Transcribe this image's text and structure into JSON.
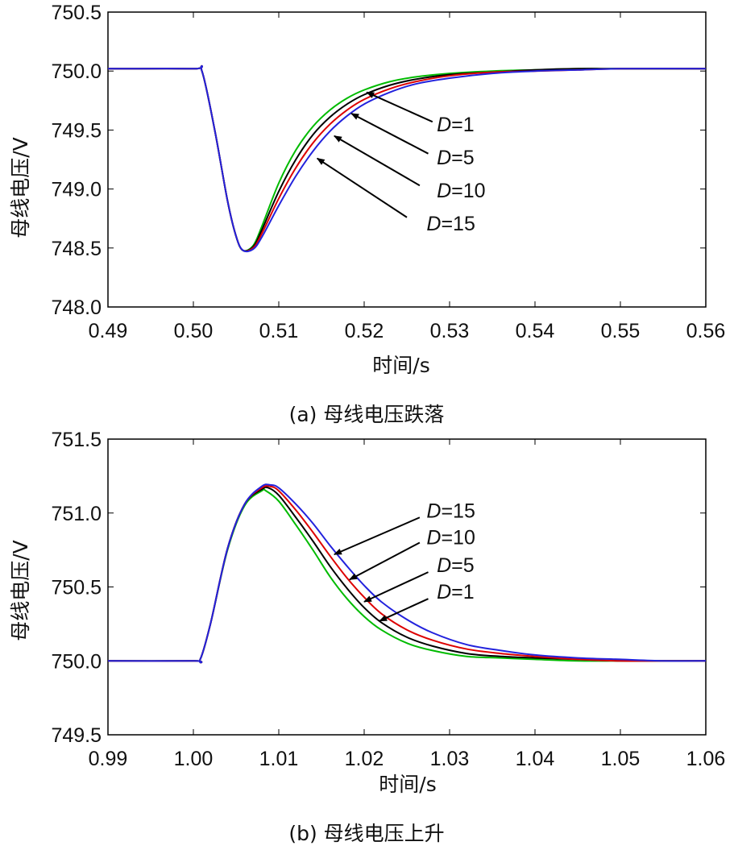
{
  "chart_data": [
    {
      "type": "line",
      "caption": "(a) 母线电压跌落",
      "xlabel": "时间/s",
      "ylabel": "母线电压/V",
      "xlim": [
        0.49,
        0.56
      ],
      "ylim": [
        748.0,
        750.5
      ],
      "xticks": [
        "0.49",
        "0.50",
        "0.51",
        "0.52",
        "0.53",
        "0.54",
        "0.55",
        "0.56"
      ],
      "yticks": [
        "748.0",
        "748.5",
        "749.0",
        "749.5",
        "750.0",
        "750.5"
      ],
      "grid": false,
      "series": [
        {
          "name": "D=1",
          "color": "#00bb00",
          "x": [
            0.49,
            0.5,
            0.501,
            0.5025,
            0.504,
            0.505,
            0.5058,
            0.507,
            0.508,
            0.51,
            0.512,
            0.514,
            0.516,
            0.518,
            0.52,
            0.523,
            0.526,
            0.53,
            0.535,
            0.54,
            0.545,
            0.55,
            0.56
          ],
          "y": [
            750.02,
            750.02,
            750.0,
            749.5,
            748.9,
            748.6,
            748.48,
            748.52,
            748.68,
            749.05,
            749.33,
            749.53,
            749.67,
            749.77,
            749.84,
            749.91,
            749.95,
            749.98,
            750.0,
            750.01,
            750.02,
            750.02,
            750.02
          ]
        },
        {
          "name": "D=5",
          "color": "#000000",
          "x": [
            0.49,
            0.5,
            0.501,
            0.5025,
            0.504,
            0.505,
            0.5058,
            0.507,
            0.508,
            0.51,
            0.512,
            0.514,
            0.516,
            0.518,
            0.52,
            0.523,
            0.526,
            0.53,
            0.535,
            0.54,
            0.545,
            0.55,
            0.56
          ],
          "y": [
            750.02,
            750.02,
            750.0,
            749.5,
            748.9,
            748.6,
            748.48,
            748.51,
            748.65,
            748.98,
            749.25,
            749.46,
            749.61,
            749.72,
            749.8,
            749.88,
            749.93,
            749.97,
            749.99,
            750.01,
            750.02,
            750.02,
            750.02
          ]
        },
        {
          "name": "D=10",
          "color": "#dd0000",
          "x": [
            0.49,
            0.5,
            0.501,
            0.5025,
            0.504,
            0.505,
            0.5058,
            0.507,
            0.508,
            0.51,
            0.512,
            0.514,
            0.516,
            0.518,
            0.52,
            0.523,
            0.526,
            0.53,
            0.535,
            0.54,
            0.545,
            0.55,
            0.56
          ],
          "y": [
            750.02,
            750.02,
            750.0,
            749.5,
            748.9,
            748.6,
            748.48,
            748.5,
            748.62,
            748.92,
            749.18,
            749.39,
            749.55,
            749.67,
            749.76,
            749.85,
            749.91,
            749.96,
            749.99,
            750.0,
            750.01,
            750.02,
            750.02
          ]
        },
        {
          "name": "D=15",
          "color": "#2222dd",
          "x": [
            0.49,
            0.5,
            0.501,
            0.5025,
            0.504,
            0.505,
            0.5058,
            0.507,
            0.508,
            0.51,
            0.512,
            0.514,
            0.516,
            0.518,
            0.52,
            0.523,
            0.526,
            0.53,
            0.535,
            0.54,
            0.545,
            0.55,
            0.56
          ],
          "y": [
            750.02,
            750.02,
            750.0,
            749.5,
            748.9,
            748.6,
            748.48,
            748.49,
            748.59,
            748.86,
            749.11,
            749.32,
            749.49,
            749.62,
            749.72,
            749.82,
            749.89,
            749.94,
            749.98,
            750.0,
            750.01,
            750.02,
            750.02
          ]
        }
      ],
      "annotations": [
        {
          "label_prefix": "D",
          "label_value": "=1",
          "series": "D=1",
          "tip": [
            0.5203,
            749.82
          ],
          "tail": [
            0.528,
            749.57
          ],
          "label_at": [
            0.5285,
            749.49
          ]
        },
        {
          "label_prefix": "D",
          "label_value": "=5",
          "series": "D=5",
          "tip": [
            0.5185,
            749.64
          ],
          "tail": [
            0.5275,
            749.3
          ],
          "label_at": [
            0.5285,
            749.21
          ]
        },
        {
          "label_prefix": "D",
          "label_value": "=10",
          "series": "D=10",
          "tip": [
            0.5165,
            749.45
          ],
          "tail": [
            0.5265,
            749.03
          ],
          "label_at": [
            0.5285,
            748.93
          ]
        },
        {
          "label_prefix": "D",
          "label_value": "=15",
          "series": "D=15",
          "tip": [
            0.5145,
            749.26
          ],
          "tail": [
            0.525,
            748.76
          ],
          "label_at": [
            0.5273,
            748.65
          ]
        }
      ]
    },
    {
      "type": "line",
      "caption": "(b) 母线电压上升",
      "xlabel": "时间/s",
      "ylabel": "母线电压/V",
      "xlim": [
        0.99,
        1.06
      ],
      "ylim": [
        749.5,
        751.5
      ],
      "xticks": [
        "0.99",
        "1.00",
        "1.01",
        "1.02",
        "1.03",
        "1.04",
        "1.05",
        "1.06"
      ],
      "yticks": [
        "749.5",
        "750.0",
        "750.5",
        "751.0",
        "751.5"
      ],
      "grid": false,
      "series": [
        {
          "name": "D=1",
          "color": "#00bb00",
          "x": [
            0.99,
            1.0,
            1.0008,
            1.002,
            1.004,
            1.006,
            1.008,
            1.0085,
            1.01,
            1.012,
            1.014,
            1.016,
            1.018,
            1.02,
            1.022,
            1.025,
            1.028,
            1.032,
            1.036,
            1.04,
            1.045,
            1.05,
            1.055,
            1.06
          ],
          "y": [
            750.0,
            750.0,
            750.01,
            750.25,
            750.75,
            751.05,
            751.15,
            751.15,
            751.08,
            750.92,
            750.75,
            750.57,
            750.42,
            750.3,
            750.21,
            750.12,
            750.07,
            750.03,
            750.02,
            750.01,
            750.0,
            750.0,
            750.0,
            750.0
          ]
        },
        {
          "name": "D=5",
          "color": "#000000",
          "x": [
            0.99,
            1.0,
            1.0008,
            1.002,
            1.004,
            1.006,
            1.008,
            1.0088,
            1.01,
            1.012,
            1.014,
            1.016,
            1.018,
            1.02,
            1.022,
            1.025,
            1.028,
            1.032,
            1.036,
            1.04,
            1.045,
            1.05,
            1.055,
            1.06
          ],
          "y": [
            750.0,
            750.0,
            750.01,
            750.25,
            750.76,
            751.06,
            751.16,
            751.17,
            751.12,
            750.97,
            750.81,
            750.64,
            750.49,
            750.36,
            750.26,
            750.16,
            750.1,
            750.05,
            750.03,
            750.02,
            750.01,
            750.0,
            750.0,
            750.0
          ]
        },
        {
          "name": "D=10",
          "color": "#dd0000",
          "x": [
            0.99,
            1.0,
            1.0008,
            1.002,
            1.004,
            1.006,
            1.008,
            1.009,
            1.01,
            1.012,
            1.014,
            1.016,
            1.018,
            1.02,
            1.022,
            1.025,
            1.028,
            1.032,
            1.036,
            1.04,
            1.045,
            1.05,
            1.055,
            1.06
          ],
          "y": [
            750.0,
            750.0,
            750.01,
            750.25,
            750.76,
            751.06,
            751.17,
            751.18,
            751.15,
            751.02,
            750.87,
            750.71,
            750.56,
            750.43,
            750.32,
            750.21,
            750.14,
            750.08,
            750.05,
            750.03,
            750.01,
            750.0,
            750.0,
            750.0
          ]
        },
        {
          "name": "D=15",
          "color": "#2222dd",
          "x": [
            0.99,
            1.0,
            1.0008,
            1.002,
            1.004,
            1.006,
            1.008,
            1.009,
            1.01,
            1.012,
            1.014,
            1.016,
            1.018,
            1.02,
            1.022,
            1.025,
            1.028,
            1.032,
            1.036,
            1.04,
            1.045,
            1.05,
            1.055,
            1.06
          ],
          "y": [
            750.0,
            750.0,
            750.01,
            750.25,
            750.76,
            751.06,
            751.18,
            751.19,
            751.17,
            751.06,
            750.93,
            750.78,
            750.64,
            750.51,
            750.4,
            750.28,
            750.19,
            750.11,
            750.07,
            750.04,
            750.02,
            750.01,
            750.0,
            750.0
          ]
        }
      ],
      "annotations": [
        {
          "label_prefix": "D",
          "label_value": "=15",
          "series": "D=15",
          "tip": [
            1.0165,
            750.72
          ],
          "tail": [
            1.0265,
            750.97
          ],
          "label_at": [
            1.0273,
            750.97
          ]
        },
        {
          "label_prefix": "D",
          "label_value": "=10",
          "series": "D=10",
          "tip": [
            1.0183,
            750.55
          ],
          "tail": [
            1.0265,
            750.8
          ],
          "label_at": [
            1.0273,
            750.79
          ]
        },
        {
          "label_prefix": "D",
          "label_value": "=5",
          "series": "D=5",
          "tip": [
            1.02,
            750.4
          ],
          "tail": [
            1.0275,
            750.6
          ],
          "label_at": [
            1.0285,
            750.6
          ]
        },
        {
          "label_prefix": "D",
          "label_value": "=1",
          "series": "D=1",
          "tip": [
            1.0218,
            750.27
          ],
          "tail": [
            1.0275,
            750.42
          ],
          "label_at": [
            1.0285,
            750.42
          ]
        }
      ]
    }
  ]
}
